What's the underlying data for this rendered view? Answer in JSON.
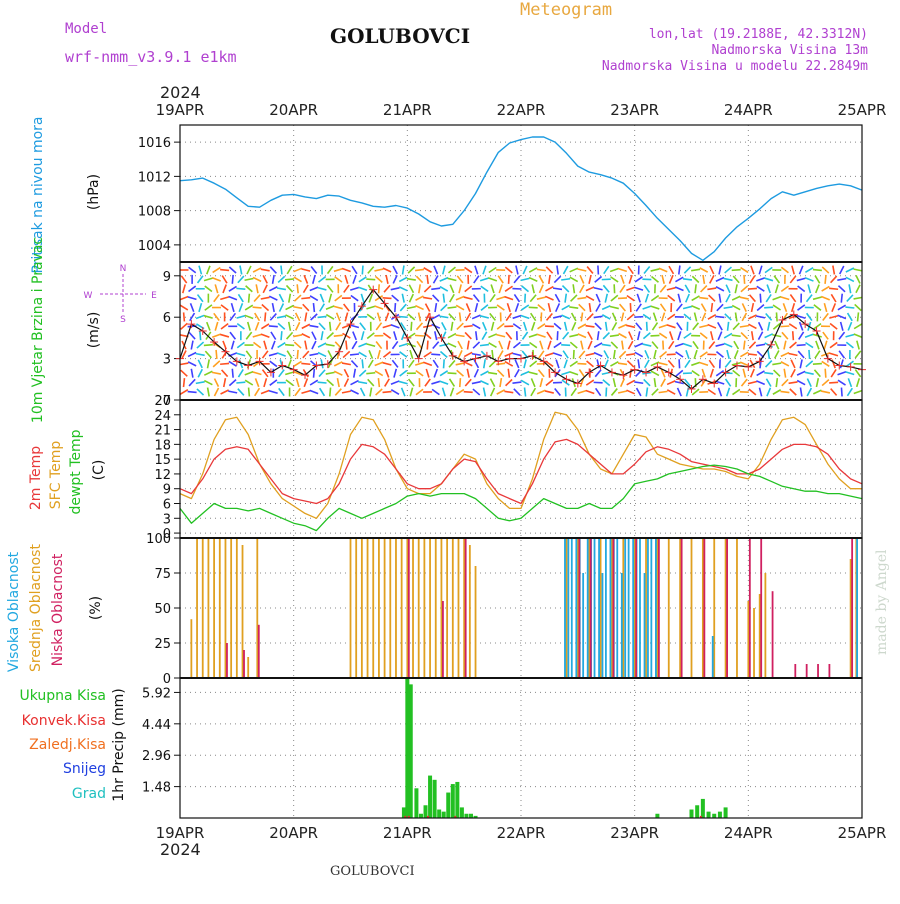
{
  "header": {
    "model_label": "Model",
    "model_name": "wrf-nmm_v3.9.1  e1km",
    "station": "GOLUBOVCI",
    "meteogram_label": "Meteogram",
    "lonlat": "lon,lat (19.2188E, 42.3312N)",
    "altitude": "Nadmorska Visina 13m",
    "model_altitude": "Nadmorska Visina u modelu 22.2849m",
    "year": "2024"
  },
  "footer": {
    "station": "GOLUBOVCI",
    "year": "2024",
    "made_by": "made by Angel"
  },
  "colors": {
    "pressure": "#1e9be0",
    "temp_2m": "#e8383a",
    "temp_sfc": "#e0a020",
    "dewpoint": "#22c022",
    "cloud_high": "#22a8e0",
    "cloud_mid": "#e0a020",
    "cloud_low": "#d02060",
    "rain_total": "#22c022",
    "rain_conv": "#e83030",
    "frz_rain": "#f07020",
    "snow": "#2040e0",
    "hail": "#20c0c0",
    "label_purple": "#b040d0",
    "label_orange": "#e8a840"
  },
  "compass": {
    "n": "N",
    "s": "S",
    "e": "E",
    "w": "W"
  },
  "chart_data": [
    {
      "type": "line",
      "panel": "pressure",
      "ylabel": "Pritisak na nivou mora",
      "unit": "(hPa)",
      "x_labels": [
        "19APR",
        "20APR",
        "21APR",
        "22APR",
        "23APR",
        "24APR",
        "25APR"
      ],
      "yticks": [
        "1004",
        "1008",
        "1012",
        "1016"
      ],
      "ylim": [
        1002,
        1018
      ],
      "series": [
        {
          "name": "Pritisak na nivou mora",
          "x_days": [
            0,
            0.1,
            0.2,
            0.3,
            0.4,
            0.5,
            0.6,
            0.7,
            0.8,
            0.9,
            1.0,
            1.1,
            1.2,
            1.3,
            1.4,
            1.5,
            1.6,
            1.7,
            1.8,
            1.9,
            2.0,
            2.1,
            2.2,
            2.3,
            2.4,
            2.5,
            2.6,
            2.7,
            2.8,
            2.9,
            3.0,
            3.1,
            3.2,
            3.3,
            3.4,
            3.5,
            3.6,
            3.7,
            3.8,
            3.9,
            4.0,
            4.1,
            4.2,
            4.3,
            4.4,
            4.5,
            4.6,
            4.7,
            4.8,
            4.9,
            5.0,
            5.1,
            5.2,
            5.3,
            5.4,
            5.5,
            5.6,
            5.7,
            5.8,
            5.9,
            6.0
          ],
          "values": [
            1011.5,
            1011.6,
            1011.8,
            1011.2,
            1010.5,
            1009.5,
            1008.5,
            1008.4,
            1009.2,
            1009.8,
            1009.9,
            1009.6,
            1009.4,
            1009.8,
            1009.7,
            1009.2,
            1008.9,
            1008.5,
            1008.4,
            1008.6,
            1008.3,
            1007.6,
            1006.7,
            1006.2,
            1006.4,
            1008.0,
            1010.0,
            1012.5,
            1014.8,
            1015.9,
            1016.3,
            1016.6,
            1016.6,
            1016.0,
            1014.7,
            1013.2,
            1012.5,
            1012.2,
            1011.8,
            1011.2,
            1010.0,
            1008.6,
            1007.1,
            1005.8,
            1004.5,
            1003.0,
            1002.2,
            1003.2,
            1004.8,
            1006.1,
            1007.1,
            1008.2,
            1009.4,
            1010.2,
            1009.8,
            1010.2,
            1010.6,
            1010.9,
            1011.1,
            1010.9,
            1010.4
          ]
        }
      ]
    },
    {
      "type": "line",
      "panel": "wind",
      "ylabel": "10m Vjetar Brzina i Pravac",
      "unit": "(m/s)",
      "x_labels": [
        "19APR",
        "20APR",
        "21APR",
        "22APR",
        "23APR",
        "24APR",
        "25APR"
      ],
      "yticks": [
        "0",
        "3",
        "6",
        "9"
      ],
      "ylim": [
        0,
        10
      ],
      "series": [
        {
          "name": "10m Vjetar Brzina i Pravac",
          "x_days": [
            0,
            0.1,
            0.2,
            0.3,
            0.4,
            0.5,
            0.6,
            0.7,
            0.8,
            0.9,
            1.0,
            1.1,
            1.2,
            1.3,
            1.4,
            1.5,
            1.6,
            1.7,
            1.8,
            1.9,
            2.0,
            2.1,
            2.2,
            2.3,
            2.4,
            2.5,
            2.6,
            2.7,
            2.8,
            2.9,
            3.0,
            3.1,
            3.2,
            3.3,
            3.4,
            3.5,
            3.6,
            3.7,
            3.8,
            3.9,
            4.0,
            4.1,
            4.2,
            4.3,
            4.4,
            4.5,
            4.6,
            4.7,
            4.8,
            4.9,
            5.0,
            5.1,
            5.2,
            5.3,
            5.4,
            5.5,
            5.6,
            5.7,
            5.8,
            5.9,
            6.0
          ],
          "values": [
            3.0,
            5.5,
            5.0,
            4.2,
            3.5,
            2.8,
            2.5,
            2.8,
            2.0,
            2.5,
            2.2,
            1.8,
            2.5,
            2.6,
            3.5,
            5.5,
            6.8,
            8.0,
            7.0,
            6.0,
            4.5,
            3.0,
            6.0,
            4.5,
            3.2,
            2.8,
            3.0,
            3.2,
            2.8,
            3.0,
            3.0,
            3.2,
            2.8,
            2.0,
            1.5,
            1.2,
            2.0,
            2.5,
            2.0,
            1.8,
            2.2,
            2.0,
            2.4,
            2.0,
            1.5,
            0.8,
            1.5,
            1.2,
            2.0,
            2.5,
            2.4,
            2.8,
            4.0,
            5.8,
            6.2,
            5.5,
            5.0,
            3.0,
            2.5,
            2.4,
            2.2
          ]
        }
      ]
    },
    {
      "type": "line",
      "panel": "temperature",
      "ylabels": [
        "2m Temp",
        "SFC Temp",
        "dewpt Temp"
      ],
      "unit": "(C)",
      "x_labels": [
        "19APR",
        "20APR",
        "21APR",
        "22APR",
        "23APR",
        "24APR",
        "25APR"
      ],
      "yticks": [
        "0",
        "3",
        "6",
        "9",
        "12",
        "15",
        "18",
        "21",
        "24",
        "27"
      ],
      "ylim": [
        -1,
        27
      ],
      "series": [
        {
          "name": "2m Temp",
          "x_days": [
            0,
            0.1,
            0.2,
            0.3,
            0.4,
            0.5,
            0.6,
            0.7,
            0.8,
            0.9,
            1.0,
            1.1,
            1.2,
            1.3,
            1.4,
            1.5,
            1.6,
            1.7,
            1.8,
            1.9,
            2.0,
            2.1,
            2.2,
            2.3,
            2.4,
            2.5,
            2.6,
            2.7,
            2.8,
            2.9,
            3.0,
            3.1,
            3.2,
            3.3,
            3.4,
            3.5,
            3.6,
            3.7,
            3.8,
            3.9,
            4.0,
            4.1,
            4.2,
            4.3,
            4.4,
            4.5,
            4.6,
            4.7,
            4.8,
            4.9,
            5.0,
            5.1,
            5.2,
            5.3,
            5.4,
            5.5,
            5.6,
            5.7,
            5.8,
            5.9,
            6.0
          ],
          "values": [
            9,
            8,
            11,
            15,
            17,
            17.5,
            17,
            14,
            11,
            8,
            7,
            6.5,
            6,
            7,
            10,
            15,
            18,
            17.5,
            16,
            13,
            10,
            9,
            9,
            10,
            13,
            15,
            14.5,
            11,
            8,
            7,
            6,
            10,
            15,
            18.5,
            19,
            18,
            16,
            14,
            12,
            12,
            14,
            16.5,
            17.5,
            17,
            16,
            14.5,
            14,
            13.5,
            13,
            12,
            12,
            13,
            15,
            17,
            18,
            18,
            17.5,
            16,
            13,
            11,
            10
          ]
        },
        {
          "name": "SFC Temp",
          "x_days": [
            0,
            0.1,
            0.2,
            0.3,
            0.4,
            0.5,
            0.6,
            0.7,
            0.8,
            0.9,
            1.0,
            1.1,
            1.2,
            1.3,
            1.4,
            1.5,
            1.6,
            1.7,
            1.8,
            1.9,
            2.0,
            2.1,
            2.2,
            2.3,
            2.4,
            2.5,
            2.6,
            2.7,
            2.8,
            2.9,
            3.0,
            3.1,
            3.2,
            3.3,
            3.4,
            3.5,
            3.6,
            3.7,
            3.8,
            3.9,
            4.0,
            4.1,
            4.2,
            4.3,
            4.4,
            4.5,
            4.6,
            4.7,
            4.8,
            4.9,
            5.0,
            5.1,
            5.2,
            5.3,
            5.4,
            5.5,
            5.6,
            5.7,
            5.8,
            5.9,
            6.0
          ],
          "values": [
            8,
            7,
            12,
            19,
            23,
            23.5,
            20,
            14,
            10,
            7,
            5.5,
            4,
            3,
            6,
            12,
            20,
            23.5,
            23,
            19,
            13,
            9,
            8,
            8,
            10,
            13,
            16,
            15,
            10,
            7,
            5,
            5,
            11,
            19,
            24.5,
            24,
            21,
            16,
            13,
            12,
            16,
            20,
            19.5,
            16,
            15,
            14,
            13.5,
            13,
            13,
            12.5,
            11.5,
            11,
            14,
            19,
            23,
            23.5,
            22,
            18,
            14,
            11,
            9,
            9
          ]
        },
        {
          "name": "dewpt Temp",
          "x_days": [
            0,
            0.1,
            0.2,
            0.3,
            0.4,
            0.5,
            0.6,
            0.7,
            0.8,
            0.9,
            1.0,
            1.1,
            1.2,
            1.3,
            1.4,
            1.5,
            1.6,
            1.7,
            1.8,
            1.9,
            2.0,
            2.1,
            2.2,
            2.3,
            2.4,
            2.5,
            2.6,
            2.7,
            2.8,
            2.9,
            3.0,
            3.1,
            3.2,
            3.3,
            3.4,
            3.5,
            3.6,
            3.7,
            3.8,
            3.9,
            4.0,
            4.1,
            4.2,
            4.3,
            4.4,
            4.5,
            4.6,
            4.7,
            4.8,
            4.9,
            5.0,
            5.1,
            5.2,
            5.3,
            5.4,
            5.5,
            5.6,
            5.7,
            5.8,
            5.9,
            6.0
          ],
          "values": [
            5,
            2,
            4,
            6,
            5,
            5,
            4.5,
            5,
            4,
            3,
            2,
            1.5,
            0.5,
            3,
            5,
            4,
            3,
            4,
            5,
            6,
            7.5,
            8,
            7.5,
            8,
            8,
            8,
            7,
            5,
            3,
            2.5,
            3,
            5,
            7,
            6,
            5,
            5,
            6,
            5,
            5,
            7,
            10,
            10.5,
            11,
            12,
            12.5,
            13,
            13.5,
            13.8,
            13.5,
            13,
            12,
            11.5,
            10.5,
            9.5,
            9,
            8.5,
            8.5,
            8,
            8,
            7.5,
            7
          ]
        }
      ]
    },
    {
      "type": "bar",
      "panel": "clouds",
      "ylabels": [
        "Visoka Oblacnost",
        "Srednja Oblacnost",
        "Niska Oblacnost"
      ],
      "unit": "(%)",
      "x_labels": [
        "19APR",
        "20APR",
        "21APR",
        "22APR",
        "23APR",
        "24APR",
        "25APR"
      ],
      "yticks": [
        "0",
        "25",
        "50",
        "75",
        "100"
      ],
      "ylim": [
        0,
        100
      ],
      "series": [
        {
          "name": "Visoka Oblacnost",
          "x_days": [
            3.4,
            3.43,
            3.46,
            3.5,
            3.53,
            3.56,
            3.6,
            3.63,
            3.66,
            3.7,
            3.73,
            3.76,
            3.8,
            3.83,
            3.86,
            3.9,
            3.93,
            3.96,
            4.0,
            4.03,
            4.06,
            4.1,
            4.13,
            4.16,
            4.2,
            4.7,
            5.97
          ],
          "values": [
            100,
            100,
            100,
            100,
            100,
            75,
            100,
            100,
            100,
            100,
            75,
            100,
            100,
            100,
            100,
            75,
            100,
            100,
            100,
            100,
            100,
            75,
            100,
            100,
            100,
            30,
            100
          ]
        },
        {
          "name": "Srednja Oblacnost",
          "x_days": [
            0.1,
            0.15,
            0.2,
            0.25,
            0.3,
            0.35,
            0.4,
            0.45,
            0.5,
            0.55,
            0.6,
            0.68,
            1.5,
            1.55,
            1.6,
            1.65,
            1.7,
            1.75,
            1.8,
            1.85,
            1.9,
            1.95,
            2.0,
            2.05,
            2.1,
            2.15,
            2.2,
            2.25,
            2.3,
            2.35,
            2.4,
            2.45,
            2.5,
            2.55,
            2.6,
            3.4,
            3.5,
            3.6,
            3.7,
            3.8,
            3.9,
            4.0,
            4.1,
            4.2,
            4.3,
            4.4,
            4.5,
            4.6,
            4.7,
            4.8,
            4.9,
            5.0,
            5.05,
            5.1,
            5.15,
            5.9,
            5.95
          ],
          "values": [
            42,
            100,
            100,
            100,
            100,
            100,
            100,
            100,
            100,
            95,
            15,
            100,
            100,
            100,
            100,
            100,
            100,
            100,
            100,
            100,
            100,
            100,
            100,
            100,
            100,
            100,
            100,
            100,
            100,
            100,
            100,
            100,
            100,
            95,
            80,
            100,
            100,
            100,
            100,
            100,
            100,
            100,
            100,
            100,
            100,
            100,
            100,
            100,
            100,
            100,
            100,
            55,
            50,
            60,
            75,
            85,
            100
          ]
        },
        {
          "name": "Niska Oblacnost",
          "x_days": [
            0.4,
            0.55,
            0.68,
            2.0,
            2.3,
            2.5,
            3.5,
            3.6,
            3.8,
            4.0,
            4.2,
            4.4,
            4.6,
            4.8,
            5.0,
            5.1,
            5.2,
            5.4,
            5.5,
            5.6,
            5.7,
            5.9
          ],
          "values": [
            25,
            20,
            38,
            100,
            55,
            100,
            100,
            100,
            100,
            100,
            100,
            100,
            100,
            100,
            100,
            100,
            62,
            10,
            10,
            10,
            10,
            100
          ]
        }
      ]
    },
    {
      "type": "bar",
      "panel": "precipitation",
      "ylabel": "1hr Precip",
      "unit": "(mm)",
      "legend": [
        "Ukupna Kisa",
        "Konvek.Kisa",
        "Zaledj.Kisa",
        "Snijeg",
        "Grad"
      ],
      "x_labels": [
        "19APR",
        "20APR",
        "21APR",
        "22APR",
        "23APR",
        "24APR",
        "25APR"
      ],
      "yticks": [
        "1.48",
        "2.96",
        "4.44",
        "5.92"
      ],
      "ylim": [
        0,
        6.6
      ],
      "series": [
        {
          "name": "Ukupna Kisa",
          "x_days": [
            1.97,
            2.0,
            2.03,
            2.08,
            2.12,
            2.16,
            2.2,
            2.24,
            2.28,
            2.32,
            2.36,
            2.4,
            2.44,
            2.48,
            2.52,
            2.56,
            2.6,
            4.2,
            4.5,
            4.55,
            4.6,
            4.65,
            4.7,
            4.75,
            4.8
          ],
          "values": [
            0.5,
            6.6,
            6.3,
            1.4,
            0.2,
            0.6,
            2.0,
            1.8,
            0.4,
            0.3,
            1.2,
            1.6,
            1.7,
            0.5,
            0.2,
            0.2,
            0.1,
            0.2,
            0.4,
            0.6,
            0.9,
            0.3,
            0.2,
            0.3,
            0.5
          ]
        },
        {
          "name": "Konvek.Kisa",
          "x_days": [
            2.0,
            2.03,
            2.2,
            2.44,
            4.6
          ],
          "values": [
            0.1,
            0.1,
            0.1,
            0.1,
            0.1
          ]
        }
      ]
    }
  ]
}
